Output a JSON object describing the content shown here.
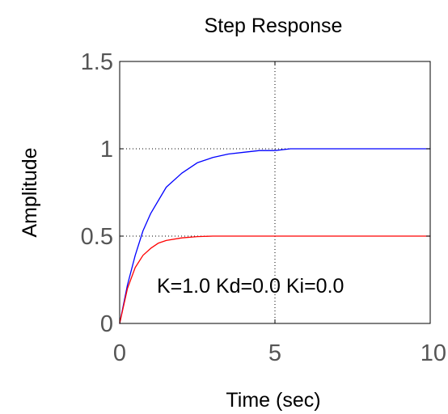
{
  "chart_data": {
    "type": "line",
    "title": "Step Response",
    "xlabel": "Time (sec)",
    "ylabel": "Amplitude",
    "xlim": [
      0,
      10
    ],
    "ylim": [
      0,
      1.5
    ],
    "x_ticks": [
      0,
      5,
      10
    ],
    "x_tick_labels": [
      "0",
      "5",
      "10"
    ],
    "y_ticks": [
      0,
      0.5,
      1,
      1.5
    ],
    "y_tick_labels": [
      "0",
      "0.5",
      "1",
      "1.5"
    ],
    "grid": {
      "style": "dotted",
      "x": [
        5
      ],
      "y": [
        1,
        0.5
      ]
    },
    "annotation": "K=1.0 Kd=0.0 Ki=0.0",
    "series": [
      {
        "color": "#0000ff",
        "x": [
          0,
          0.25,
          0.5,
          0.75,
          1,
          1.5,
          2,
          2.5,
          3,
          3.5,
          4,
          4.5,
          5,
          5.5,
          6,
          7,
          8,
          9,
          10
        ],
        "y": [
          0,
          0.22,
          0.39,
          0.53,
          0.63,
          0.78,
          0.86,
          0.92,
          0.95,
          0.97,
          0.98,
          0.99,
          0.99,
          1.0,
          1.0,
          1.0,
          1.0,
          1.0,
          1.0
        ]
      },
      {
        "color": "#ff0000",
        "x": [
          0,
          0.25,
          0.5,
          0.75,
          1,
          1.25,
          1.5,
          2,
          2.5,
          3,
          4,
          5,
          6,
          7,
          8,
          9,
          10
        ],
        "y": [
          0,
          0.2,
          0.32,
          0.39,
          0.43,
          0.46,
          0.475,
          0.49,
          0.497,
          0.5,
          0.5,
          0.5,
          0.5,
          0.5,
          0.5,
          0.5,
          0.5
        ]
      }
    ]
  }
}
